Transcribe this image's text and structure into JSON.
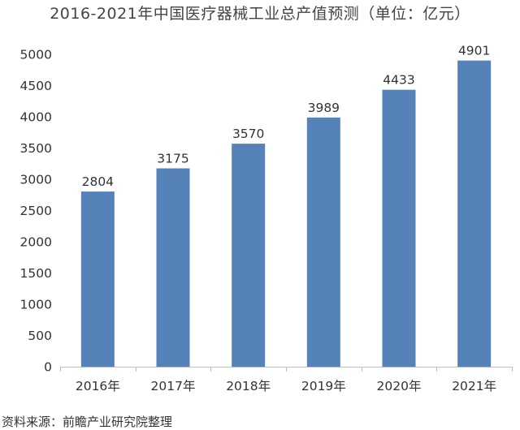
{
  "chart_data": {
    "type": "bar",
    "title": "2016-2021年中国医疗器械工业总产值预测（单位：亿元）",
    "categories": [
      "2016年",
      "2017年",
      "2018年",
      "2019年",
      "2020年",
      "2021年"
    ],
    "values": [
      2804,
      3175,
      3570,
      3989,
      4433,
      4901
    ],
    "data_labels": [
      "2804",
      "3175",
      "3570",
      "3989",
      "4433",
      "4901"
    ],
    "y_ticks": [
      0,
      500,
      1000,
      1500,
      2000,
      2500,
      3000,
      3500,
      4000,
      4500,
      5000
    ],
    "ylim": [
      0,
      5000
    ],
    "xlabel": "",
    "ylabel": "",
    "grid": false,
    "legend": "none",
    "bar_color": "#5582b9",
    "axis_color": "#bfbfbf"
  },
  "source": "资料来源：前瞻产业研究院整理"
}
